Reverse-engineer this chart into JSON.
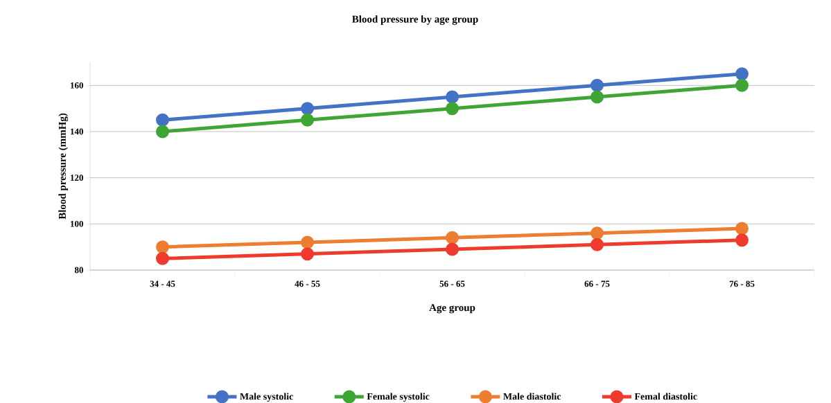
{
  "chart_data": {
    "type": "line",
    "title": "Blood pressure by age group",
    "xlabel": "Age group",
    "ylabel": "Blood pressure (mmHg)",
    "categories": [
      "34 - 45",
      "46 - 55",
      "56 - 65",
      "66 - 75",
      "76 - 85"
    ],
    "series": [
      {
        "name": "Male systolic",
        "color": "#4472c4",
        "values": [
          145,
          150,
          155,
          160,
          165
        ]
      },
      {
        "name": "Female systolic",
        "color": "#3fa535",
        "values": [
          140,
          145,
          150,
          155,
          160
        ]
      },
      {
        "name": "Male diastolic",
        "color": "#ed7d31",
        "values": [
          90,
          92,
          94,
          96,
          98
        ]
      },
      {
        "name": "Femal diastolic",
        "color": "#ee3b2e",
        "values": [
          85,
          87,
          89,
          91,
          93
        ]
      }
    ],
    "ylim": [
      80,
      170
    ],
    "yticks": [
      80,
      100,
      120,
      140,
      160
    ],
    "grid": "y",
    "legend": "bottom",
    "marker": "circle",
    "line_style": "solid"
  }
}
